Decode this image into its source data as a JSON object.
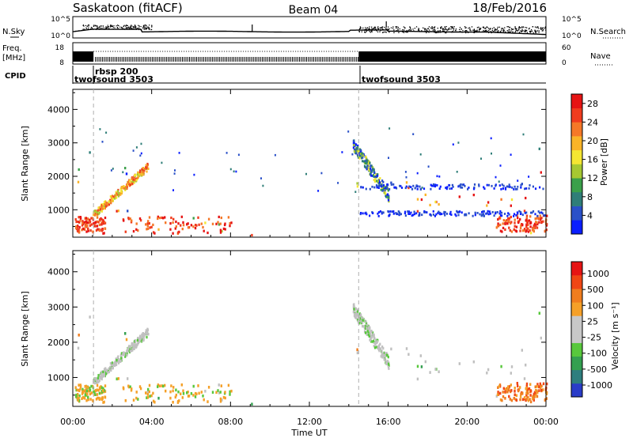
{
  "header": {
    "station": "Saskatoon (fitACF)",
    "beam": "Beam 04",
    "date": "18/Feb/2016"
  },
  "strips": {
    "noise": {
      "left_label": "N.Sky",
      "right_label": "N.Search",
      "left_ticks": [
        "10^5",
        "10^0"
      ],
      "right_ticks": [
        "10^5",
        "10^0"
      ]
    },
    "freq": {
      "left_label_line1": "Freq.",
      "left_label_line2": "[MHz]",
      "left_ticks": [
        "18",
        "8"
      ],
      "right_label": "Nave",
      "right_ticks": [
        "60",
        "0"
      ]
    },
    "cpid": {
      "label": "CPID",
      "entries": [
        "rbsp 200",
        "twofsound 3503",
        "twofsound 3503"
      ]
    }
  },
  "colors": {
    "power_scale": [
      "#0a1eff",
      "#2a50c8",
      "#2f7e78",
      "#3aa04a",
      "#a6c832",
      "#f5e632",
      "#fab428",
      "#f57828",
      "#f03c1e",
      "#e61414"
    ],
    "velocity_scale": [
      "#2a3cc8",
      "#2e7e7e",
      "#34a050",
      "#58c83c",
      "#c8c8c8",
      "#c8c8c8",
      "#f5a028",
      "#f07d1e",
      "#f04614",
      "#e61414"
    ],
    "ground_scatter": "#c0c0c0"
  },
  "chart_data": [
    {
      "type": "heatmap",
      "name": "power",
      "ylabel": "Slant Range [km]",
      "y_ticks": [
        "1000",
        "2000",
        "3000",
        "4000"
      ],
      "ylim": [
        180,
        4600
      ],
      "colorbar_label": "Power [dB]",
      "colorbar_ticks": [
        "4",
        "8",
        "12",
        "16",
        "20",
        "24",
        "28"
      ],
      "colorbar_range": [
        0,
        30
      ]
    },
    {
      "type": "heatmap",
      "name": "velocity",
      "ylabel": "Slant Range [km]",
      "y_ticks": [
        "1000",
        "2000",
        "3000",
        "4000"
      ],
      "ylim": [
        180,
        4600
      ],
      "colorbar_label": "Velocity [m s⁻¹]",
      "colorbar_ticks": [
        "1000",
        "500",
        "100",
        "25",
        "-25",
        "-100",
        "-500",
        "-1000"
      ],
      "xlabel": "Time UT",
      "x_ticks": [
        "00:00",
        "04:00",
        "08:00",
        "12:00",
        "16:00",
        "20:00",
        "00:00"
      ],
      "xlim": [
        0,
        24
      ]
    }
  ]
}
